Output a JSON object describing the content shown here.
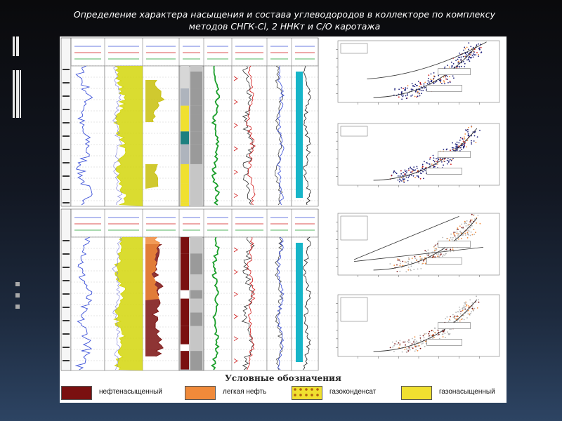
{
  "title": {
    "line1": "Определение характера насыщения и состава углеводородов в коллекторе по комплексу",
    "line2": "методов СНГК-Cl, 2 ННКт и С/О каротажа"
  },
  "legend": {
    "title": "Условные обозначения",
    "items": [
      {
        "label": "нефтенасыщенный",
        "color": "#7a1010"
      },
      {
        "label": "легкая нефть",
        "color": "#f08a3a"
      },
      {
        "label": "газоконденсат",
        "color": "#d8b400",
        "pattern": "dots"
      },
      {
        "label": "газонасыщенный",
        "color": "#f0e030"
      }
    ]
  },
  "colors": {
    "curve_blue": "#3a4fd8",
    "curve_yellow": "#d4d60c",
    "curve_green": "#1a9e2a",
    "curve_red": "#d01818",
    "curve_cyan": "#17b5c8",
    "oil_dark_red": "#7a1010",
    "scatter_navy": "#1c1f7a",
    "scatter_orange": "#f08a3a",
    "scatter_grey": "#b4b4b4"
  },
  "icons": [
    "log-header-icon",
    "scatter-plot-icon"
  ]
}
